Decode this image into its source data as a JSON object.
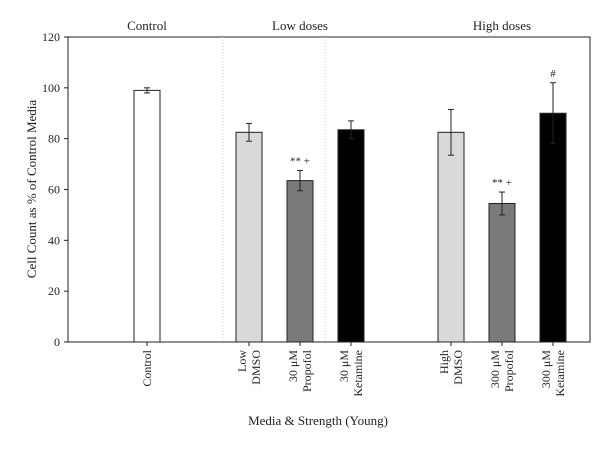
{
  "chart_data": {
    "type": "bar",
    "title": "",
    "xlabel": "Media & Strength (Young)",
    "ylabel": "Cell Count as % of Control Media",
    "ylim": [
      0,
      120
    ],
    "yticks": [
      0,
      20,
      40,
      60,
      80,
      100,
      120
    ],
    "grid": false,
    "groups": [
      {
        "label": "Control",
        "bars": [
          0
        ]
      },
      {
        "label": "Low doses",
        "bars": [
          1,
          2,
          3
        ]
      },
      {
        "label": "High doses",
        "bars": [
          4,
          5,
          6
        ]
      }
    ],
    "bars": [
      {
        "category": [
          "Control"
        ],
        "value": 99,
        "error": 1.0,
        "fill": "#ffffff",
        "annotation": ""
      },
      {
        "category": [
          "Low",
          "DMSO"
        ],
        "value": 82.5,
        "error": 3.5,
        "fill": "#d9d9d9",
        "annotation": ""
      },
      {
        "category": [
          "30 μM",
          "Propofol"
        ],
        "value": 63.5,
        "error": 4.0,
        "fill": "#7a7a7a",
        "annotation": "** +"
      },
      {
        "category": [
          "30 μM",
          "Ketamine"
        ],
        "value": 83.5,
        "error": 3.5,
        "fill": "#000000",
        "annotation": ""
      },
      {
        "category": [
          "High",
          "DMSO"
        ],
        "value": 82.5,
        "error": 9.0,
        "fill": "#d9d9d9",
        "annotation": ""
      },
      {
        "category": [
          "300 μM",
          "Propofol"
        ],
        "value": 54.5,
        "error": 4.5,
        "fill": "#7a7a7a",
        "annotation": "** +"
      },
      {
        "category": [
          "300 μM",
          "Ketamine"
        ],
        "value": 90,
        "error": 12.0,
        "fill": "#000000",
        "annotation": "#"
      }
    ]
  }
}
